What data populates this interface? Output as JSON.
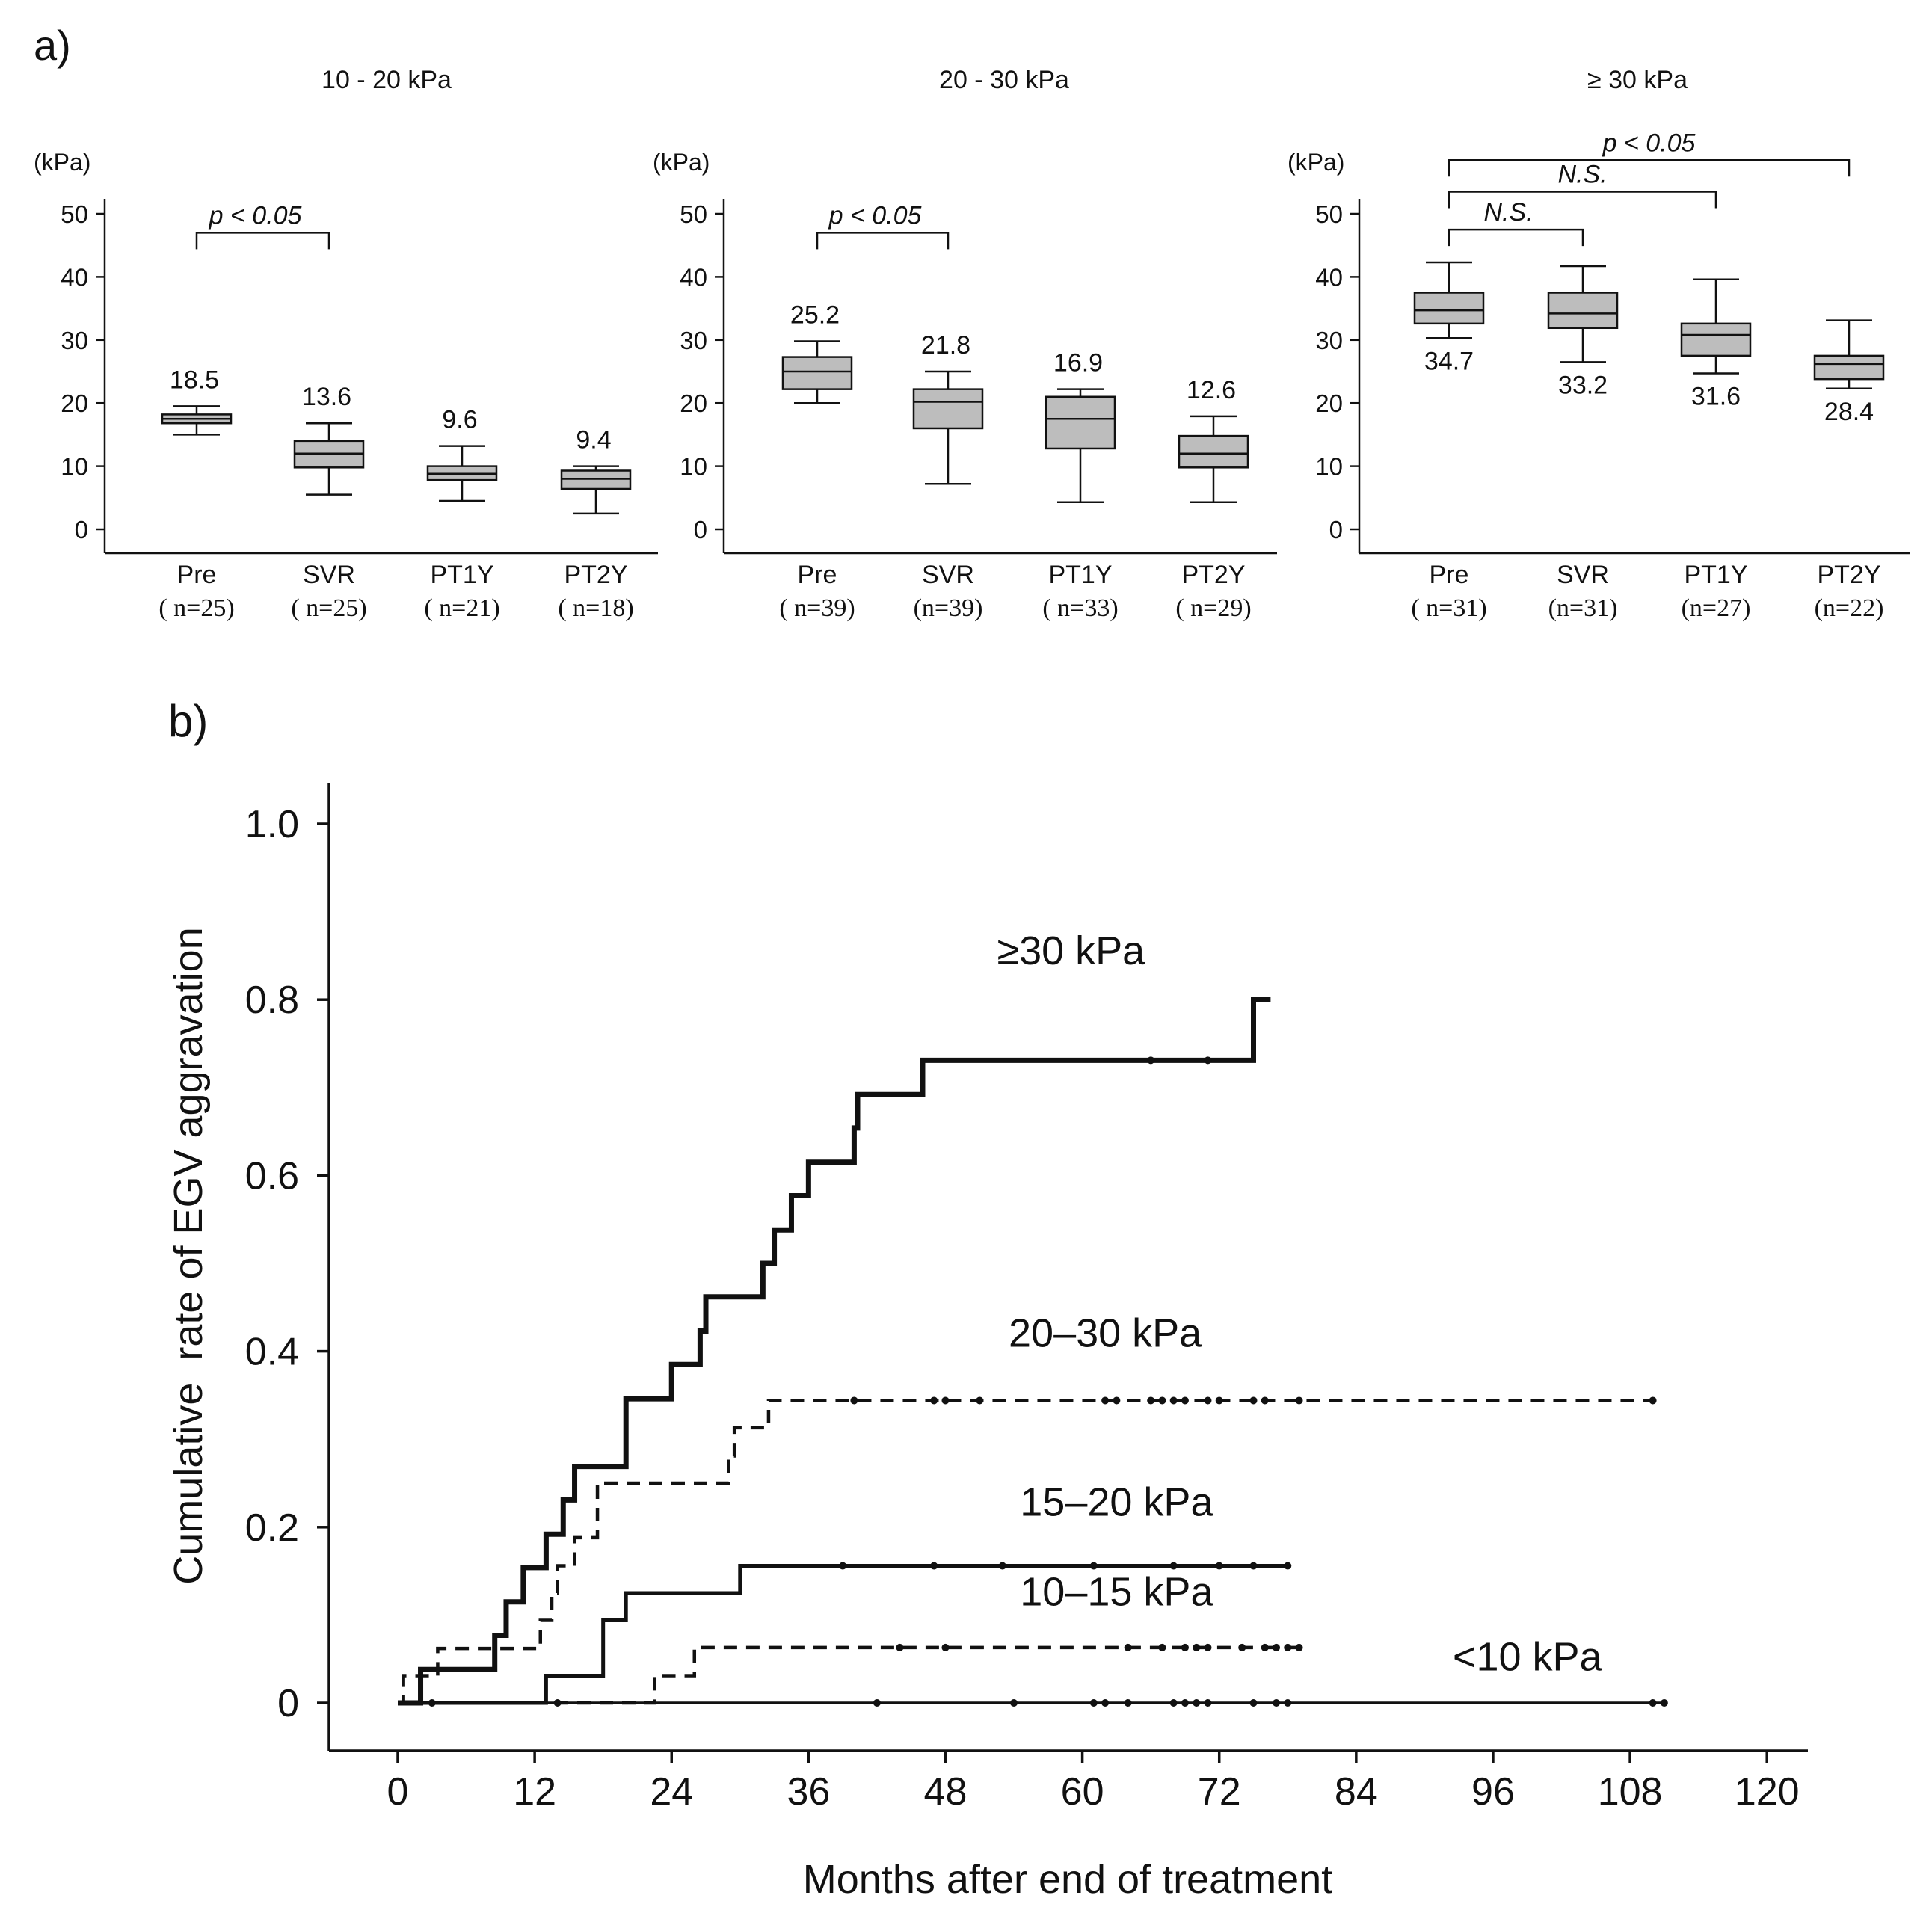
{
  "panel_a_label": "a)",
  "panel_b_label": "b)",
  "chart_data": [
    {
      "type": "box",
      "title": "10 - 20 kPa",
      "ylabel": "(kPa)",
      "ylim": [
        0,
        50
      ],
      "yticks": [
        0,
        10,
        20,
        30,
        40,
        50
      ],
      "categories": [
        {
          "label": "Pre",
          "n_text": "( n=25)"
        },
        {
          "label": "SVR",
          "n_text": "( n=25)"
        },
        {
          "label": "PT1Y",
          "n_text": "( n=21)"
        },
        {
          "label": "PT2Y",
          "n_text": "( n=18)"
        }
      ],
      "boxes": [
        {
          "whisker_low": 15,
          "q1": 16.8,
          "median": 17.5,
          "q3": 18.2,
          "whisker_high": 19.5,
          "mean_label": "18.5",
          "label_pos": "above"
        },
        {
          "whisker_low": 5.5,
          "q1": 9.8,
          "median": 12.0,
          "q3": 14.0,
          "whisker_high": 16.8,
          "mean_label": "13.6",
          "label_pos": "above"
        },
        {
          "whisker_low": 4.5,
          "q1": 7.8,
          "median": 8.8,
          "q3": 10.0,
          "whisker_high": 13.2,
          "mean_label": "9.6",
          "label_pos": "above"
        },
        {
          "whisker_low": 2.5,
          "q1": 6.4,
          "median": 8.0,
          "q3": 9.3,
          "whisker_high": 10.0,
          "mean_label": "9.4",
          "label_pos": "above"
        }
      ],
      "brackets": [
        {
          "from": 0,
          "to": 1,
          "label": "p < 0.05",
          "y": 47
        }
      ]
    },
    {
      "type": "box",
      "title": "20 - 30 kPa",
      "ylabel": "(kPa)",
      "ylim": [
        0,
        50
      ],
      "yticks": [
        0,
        10,
        20,
        30,
        40,
        50
      ],
      "categories": [
        {
          "label": "Pre",
          "n_text": "( n=39)"
        },
        {
          "label": "SVR",
          "n_text": "(n=39)"
        },
        {
          "label": "PT1Y",
          "n_text": "( n=33)"
        },
        {
          "label": "PT2Y",
          "n_text": "( n=29)"
        }
      ],
      "boxes": [
        {
          "whisker_low": 20,
          "q1": 22.2,
          "median": 25.0,
          "q3": 27.3,
          "whisker_high": 29.8,
          "mean_label": "25.2",
          "label_pos": "above"
        },
        {
          "whisker_low": 7.2,
          "q1": 16.0,
          "median": 20.2,
          "q3": 22.2,
          "whisker_high": 25.0,
          "mean_label": "21.8",
          "label_pos": "above"
        },
        {
          "whisker_low": 4.3,
          "q1": 12.8,
          "median": 17.5,
          "q3": 21.0,
          "whisker_high": 22.2,
          "mean_label": "16.9",
          "label_pos": "above"
        },
        {
          "whisker_low": 4.3,
          "q1": 9.8,
          "median": 12.0,
          "q3": 14.8,
          "whisker_high": 17.9,
          "mean_label": "12.6",
          "label_pos": "above"
        }
      ],
      "brackets": [
        {
          "from": 0,
          "to": 1,
          "label": "p < 0.05",
          "y": 47
        }
      ]
    },
    {
      "type": "box",
      "title": "≥ 30 kPa",
      "ylabel": "(kPa)",
      "ylim": [
        0,
        50
      ],
      "yticks": [
        0,
        10,
        20,
        30,
        40,
        50
      ],
      "categories": [
        {
          "label": "Pre",
          "n_text": "( n=31)"
        },
        {
          "label": "SVR",
          "n_text": "(n=31)"
        },
        {
          "label": "PT1Y",
          "n_text": "(n=27)"
        },
        {
          "label": "PT2Y",
          "n_text": "(n=22)"
        }
      ],
      "boxes": [
        {
          "whisker_low": 30.3,
          "q1": 32.6,
          "median": 34.7,
          "q3": 37.5,
          "whisker_high": 42.3,
          "mean_label": "34.7",
          "label_pos": "below"
        },
        {
          "whisker_low": 26.5,
          "q1": 31.9,
          "median": 34.2,
          "q3": 37.5,
          "whisker_high": 41.7,
          "mean_label": "33.2",
          "label_pos": "below"
        },
        {
          "whisker_low": 24.7,
          "q1": 27.5,
          "median": 30.8,
          "q3": 32.6,
          "whisker_high": 39.6,
          "mean_label": "31.6",
          "label_pos": "below"
        },
        {
          "whisker_low": 22.3,
          "q1": 23.8,
          "median": 26.2,
          "q3": 27.5,
          "whisker_high": 33.1,
          "mean_label": "28.4",
          "label_pos": "below"
        }
      ],
      "brackets": [
        {
          "from": 0,
          "to": 1,
          "label": "N.S.",
          "y": 47.5
        },
        {
          "from": 0,
          "to": 2,
          "label": "N.S.",
          "y": 53.5
        },
        {
          "from": 0,
          "to": 3,
          "label": "p < 0.05",
          "y": 58.5
        }
      ]
    },
    {
      "type": "line",
      "subtype": "kaplan-meier",
      "xlabel": "Months after end of treatment",
      "ylabel": "Cumulative  rate of EGV aggravation",
      "xlim": [
        -5,
        123
      ],
      "ylim": [
        -0.05,
        1.04
      ],
      "xticks": [
        0,
        12,
        24,
        36,
        48,
        60,
        72,
        84,
        96,
        108,
        120
      ],
      "yticks": [
        0,
        0.2,
        0.4,
        0.6,
        0.8,
        1.0
      ],
      "ytick_labels": [
        "0",
        "0.2",
        "0.4",
        "0.6",
        "0.8",
        "1.0"
      ],
      "series": [
        {
          "name": "≥30 kPa",
          "style": "thick-solid",
          "label_at": [
            59,
            0.84
          ],
          "steps": [
            [
              0,
              0
            ],
            [
              2,
              0.038
            ],
            [
              8.5,
              0.077
            ],
            [
              9.5,
              0.115
            ],
            [
              11,
              0.154
            ],
            [
              13,
              0.192
            ],
            [
              14.5,
              0.231
            ],
            [
              15.5,
              0.269
            ],
            [
              20,
              0.346
            ],
            [
              24,
              0.385
            ],
            [
              26.5,
              0.423
            ],
            [
              27,
              0.462
            ],
            [
              32,
              0.5
            ],
            [
              33,
              0.538
            ],
            [
              34.5,
              0.577
            ],
            [
              36,
              0.615
            ],
            [
              40,
              0.654
            ],
            [
              40.3,
              0.692
            ],
            [
              46,
              0.731
            ],
            [
              75,
              0.8
            ],
            [
              76.5,
              0.8
            ]
          ],
          "censors": [
            [
              66,
              0.731
            ],
            [
              71,
              0.731
            ]
          ]
        },
        {
          "name": "20–30 kPa",
          "style": "dashed",
          "label_at": [
            62,
            0.405
          ],
          "steps": [
            [
              0,
              0
            ],
            [
              0.5,
              0.031
            ],
            [
              3.5,
              0.062
            ],
            [
              12.5,
              0.094
            ],
            [
              13.5,
              0.125
            ],
            [
              14,
              0.156
            ],
            [
              15.5,
              0.188
            ],
            [
              17.5,
              0.25
            ],
            [
              29,
              0.281
            ],
            [
              29.5,
              0.313
            ],
            [
              32.5,
              0.344
            ],
            [
              110,
              0.344
            ]
          ],
          "censors": [
            [
              40,
              0.344
            ],
            [
              47,
              0.344
            ],
            [
              48,
              0.344
            ],
            [
              51,
              0.344
            ],
            [
              62,
              0.344
            ],
            [
              63,
              0.344
            ],
            [
              66,
              0.344
            ],
            [
              67,
              0.344
            ],
            [
              68,
              0.344
            ],
            [
              69,
              0.344
            ],
            [
              71,
              0.344
            ],
            [
              72,
              0.344
            ],
            [
              75,
              0.344
            ],
            [
              76,
              0.344
            ],
            [
              79,
              0.344
            ],
            [
              110,
              0.344
            ]
          ]
        },
        {
          "name": "15–20 kPa",
          "style": "solid",
          "label_at": [
            63,
            0.213
          ],
          "steps": [
            [
              0,
              0
            ],
            [
              13,
              0.031
            ],
            [
              18,
              0.094
            ],
            [
              20,
              0.125
            ],
            [
              30,
              0.156
            ],
            [
              78,
              0.156
            ]
          ],
          "censors": [
            [
              39,
              0.156
            ],
            [
              47,
              0.156
            ],
            [
              53,
              0.156
            ],
            [
              61,
              0.156
            ],
            [
              68,
              0.156
            ],
            [
              72,
              0.156
            ],
            [
              75,
              0.156
            ],
            [
              78,
              0.156
            ]
          ]
        },
        {
          "name": "10–15 kPa",
          "style": "dashed",
          "label_at": [
            63,
            0.111
          ],
          "steps": [
            [
              0,
              0
            ],
            [
              22.5,
              0.031
            ],
            [
              26,
              0.063
            ],
            [
              79,
              0.063
            ]
          ],
          "censors": [
            [
              44,
              0.063
            ],
            [
              48,
              0.063
            ],
            [
              64,
              0.063
            ],
            [
              67,
              0.063
            ],
            [
              69,
              0.063
            ],
            [
              70,
              0.063
            ],
            [
              71,
              0.063
            ],
            [
              74,
              0.063
            ],
            [
              76,
              0.063
            ],
            [
              77,
              0.063
            ],
            [
              78,
              0.063
            ],
            [
              79,
              0.063
            ]
          ]
        },
        {
          "name": "<10 kPa",
          "style": "solid-thin",
          "label_at": [
            99,
            0.037
          ],
          "steps": [
            [
              0,
              0
            ],
            [
              111,
              0
            ]
          ],
          "censors": [
            [
              3,
              0
            ],
            [
              14,
              0
            ],
            [
              42,
              0
            ],
            [
              54,
              0
            ],
            [
              61,
              0
            ],
            [
              62,
              0
            ],
            [
              64,
              0
            ],
            [
              68,
              0
            ],
            [
              69,
              0
            ],
            [
              70,
              0
            ],
            [
              71,
              0
            ],
            [
              75,
              0
            ],
            [
              77,
              0
            ],
            [
              78,
              0
            ],
            [
              110,
              0
            ],
            [
              111,
              0
            ]
          ]
        }
      ]
    }
  ]
}
